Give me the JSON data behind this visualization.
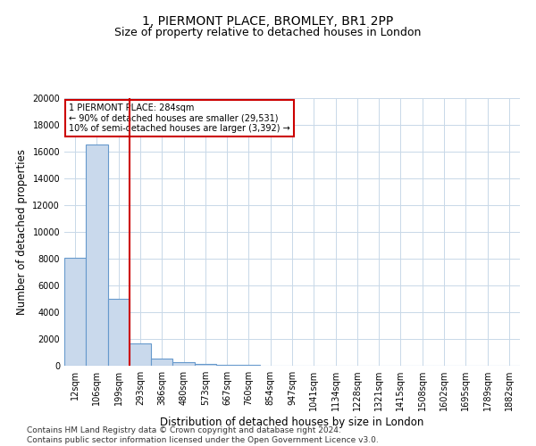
{
  "title_line1": "1, PIERMONT PLACE, BROMLEY, BR1 2PP",
  "title_line2": "Size of property relative to detached houses in London",
  "xlabel": "Distribution of detached houses by size in London",
  "ylabel": "Number of detached properties",
  "categories": [
    "12sqm",
    "106sqm",
    "199sqm",
    "293sqm",
    "386sqm",
    "480sqm",
    "573sqm",
    "667sqm",
    "760sqm",
    "854sqm",
    "947sqm",
    "1041sqm",
    "1134sqm",
    "1228sqm",
    "1321sqm",
    "1415sqm",
    "1508sqm",
    "1602sqm",
    "1695sqm",
    "1789sqm",
    "1882sqm"
  ],
  "values": [
    8050,
    16500,
    5000,
    1700,
    550,
    300,
    150,
    100,
    50,
    0,
    0,
    0,
    0,
    0,
    0,
    0,
    0,
    0,
    0,
    0,
    0
  ],
  "bar_color": "#c9d9ec",
  "bar_edge_color": "#6699cc",
  "vline_x": 2.5,
  "vline_color": "#cc0000",
  "annotation_text": "1 PIERMONT PLACE: 284sqm\n← 90% of detached houses are smaller (29,531)\n10% of semi-detached houses are larger (3,392) →",
  "annotation_box_color": "#cc0000",
  "ylim": [
    0,
    20000
  ],
  "yticks": [
    0,
    2000,
    4000,
    6000,
    8000,
    10000,
    12000,
    14000,
    16000,
    18000,
    20000
  ],
  "footnote": "Contains HM Land Registry data © Crown copyright and database right 2024.\nContains public sector information licensed under the Open Government Licence v3.0.",
  "background_color": "#ffffff",
  "grid_color": "#c8d8e8",
  "title_fontsize": 10,
  "subtitle_fontsize": 9,
  "axis_label_fontsize": 8.5,
  "tick_fontsize": 7,
  "footnote_fontsize": 6.5
}
